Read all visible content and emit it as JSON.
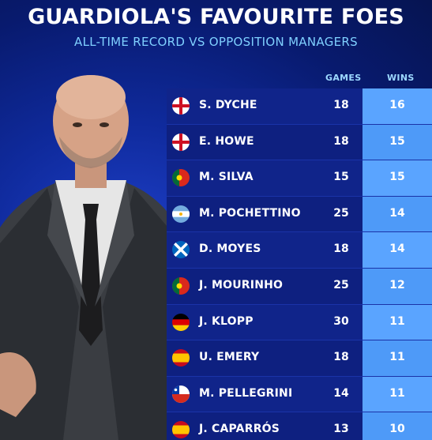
{
  "title": "GUARDIOLA'S FAVOURITE FOES",
  "subtitle": "ALL-TIME RECORD VS OPPOSITION MANAGERS",
  "headers": {
    "games": "GAMES",
    "wins": "WINS"
  },
  "colors": {
    "background": "#0f2a9c",
    "wins_column": "#5aa4ff",
    "subtitle": "#7fd0ff"
  },
  "rows": [
    {
      "name": "S. DYCHE",
      "games": "18",
      "wins": "16",
      "flag": "england-flag-icon"
    },
    {
      "name": "E. HOWE",
      "games": "18",
      "wins": "15",
      "flag": "england-flag-icon"
    },
    {
      "name": "M. SILVA",
      "games": "15",
      "wins": "15",
      "flag": "portugal-flag-icon"
    },
    {
      "name": "M. POCHETTINO",
      "games": "25",
      "wins": "14",
      "flag": "argentina-flag-icon"
    },
    {
      "name": "D. MOYES",
      "games": "18",
      "wins": "14",
      "flag": "scotland-flag-icon"
    },
    {
      "name": "J. MOURINHO",
      "games": "25",
      "wins": "12",
      "flag": "portugal-flag-icon"
    },
    {
      "name": "J. KLOPP",
      "games": "30",
      "wins": "11",
      "flag": "germany-flag-icon"
    },
    {
      "name": "U. EMERY",
      "games": "18",
      "wins": "11",
      "flag": "spain-flag-icon"
    },
    {
      "name": "M. PELLEGRINI",
      "games": "14",
      "wins": "11",
      "flag": "chile-flag-icon"
    },
    {
      "name": "J. CAPARRÓS",
      "games": "13",
      "wins": "10",
      "flag": "spain-flag-icon"
    }
  ]
}
